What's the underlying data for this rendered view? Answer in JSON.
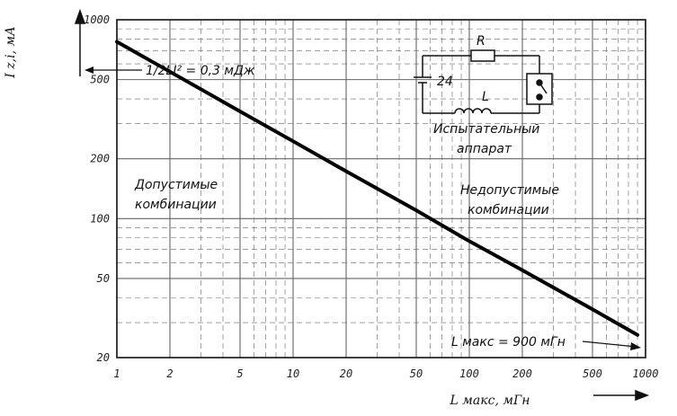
{
  "chart_data": {
    "type": "line",
    "title": "",
    "xlabel": "L макс, мГн",
    "ylabel": "I z,i, мА",
    "x_scale": "log",
    "y_scale": "log",
    "xlim": [
      1,
      1000
    ],
    "ylim": [
      20,
      1000
    ],
    "x_ticks": [
      "1",
      "2",
      "5",
      "10",
      "20",
      "50",
      "100",
      "200",
      "500",
      "1000"
    ],
    "y_ticks": [
      "20",
      "50",
      "100",
      "200",
      "500",
      "1000"
    ],
    "grid": true,
    "series": [
      {
        "x": [
          1,
          2,
          5,
          10,
          20,
          50,
          100,
          200,
          500,
          900
        ],
        "y": [
          775,
          548,
          346,
          245,
          173,
          110,
          77,
          55,
          35,
          26
        ]
      }
    ],
    "annotations": {
      "energy_label": "1/2LI² = 0,3 мДж",
      "allowed_line1": "Допустимые",
      "allowed_line2": "комбинации",
      "forbidden_line1": "Недопустимые",
      "forbidden_line2": "комбинации",
      "lmax_label": "L макс = 900 мГн",
      "apparatus_line1": "Испытательный",
      "apparatus_line2": "аппарат",
      "circuit_r": "R",
      "circuit_l": "L",
      "circuit_v": "24"
    },
    "colors": {
      "line": "#000000",
      "grid": "#666666"
    }
  }
}
